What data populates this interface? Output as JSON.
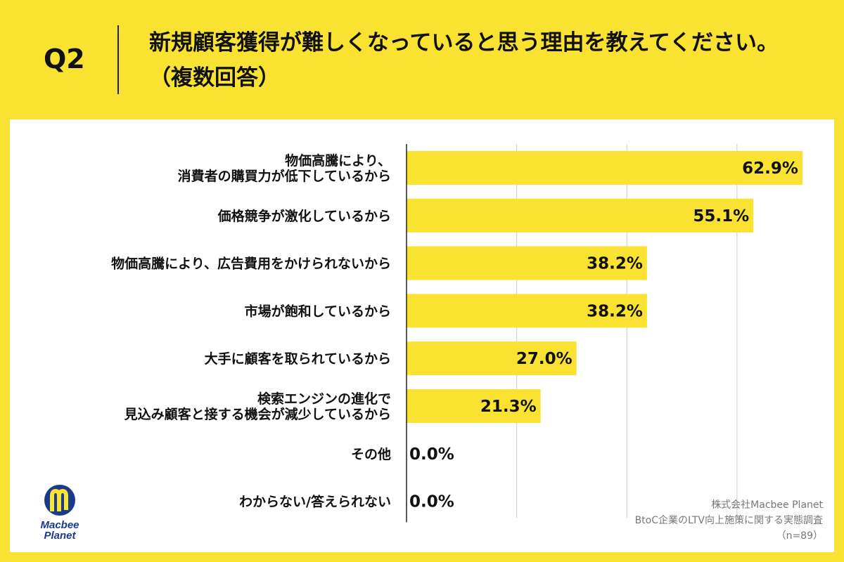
{
  "header": {
    "q_number": "Q2",
    "title": "新規顧客獲得が難しくなっていると思う理由を教えてください。（複数回答）"
  },
  "chart_data": {
    "type": "bar",
    "orientation": "horizontal",
    "categories": [
      [
        "物価高騰により、",
        "消費者の購買力が低下しているから"
      ],
      [
        "価格競争が激化しているから"
      ],
      [
        "物価高騰により、広告費用をかけられないから"
      ],
      [
        "市場が飽和しているから"
      ],
      [
        "大手に顧客を取られているから"
      ],
      [
        "検索エンジンの進化で",
        "見込み顧客と接する機会が減少しているから"
      ],
      [
        "その他"
      ],
      [
        "わからない/答えられない"
      ]
    ],
    "values": [
      62.9,
      55.1,
      38.2,
      38.2,
      27.0,
      21.3,
      0.0,
      0.0
    ],
    "value_labels": [
      "62.9%",
      "55.1%",
      "38.2%",
      "38.2%",
      "27.0%",
      "21.3%",
      "0.0%",
      "0.0%"
    ],
    "xlim": [
      0,
      70
    ],
    "grid": true,
    "bar_color": "#F9E232"
  },
  "footer": {
    "company": "株式会社Macbee Planet",
    "survey": "BtoC企業のLTV向上施策に関する実態調査",
    "n": "（n=89）"
  },
  "logo": {
    "line1": "Macbee",
    "line2": "Planet",
    "colors": {
      "navy": "#1a3a8a",
      "yellow": "#F9E232"
    }
  }
}
